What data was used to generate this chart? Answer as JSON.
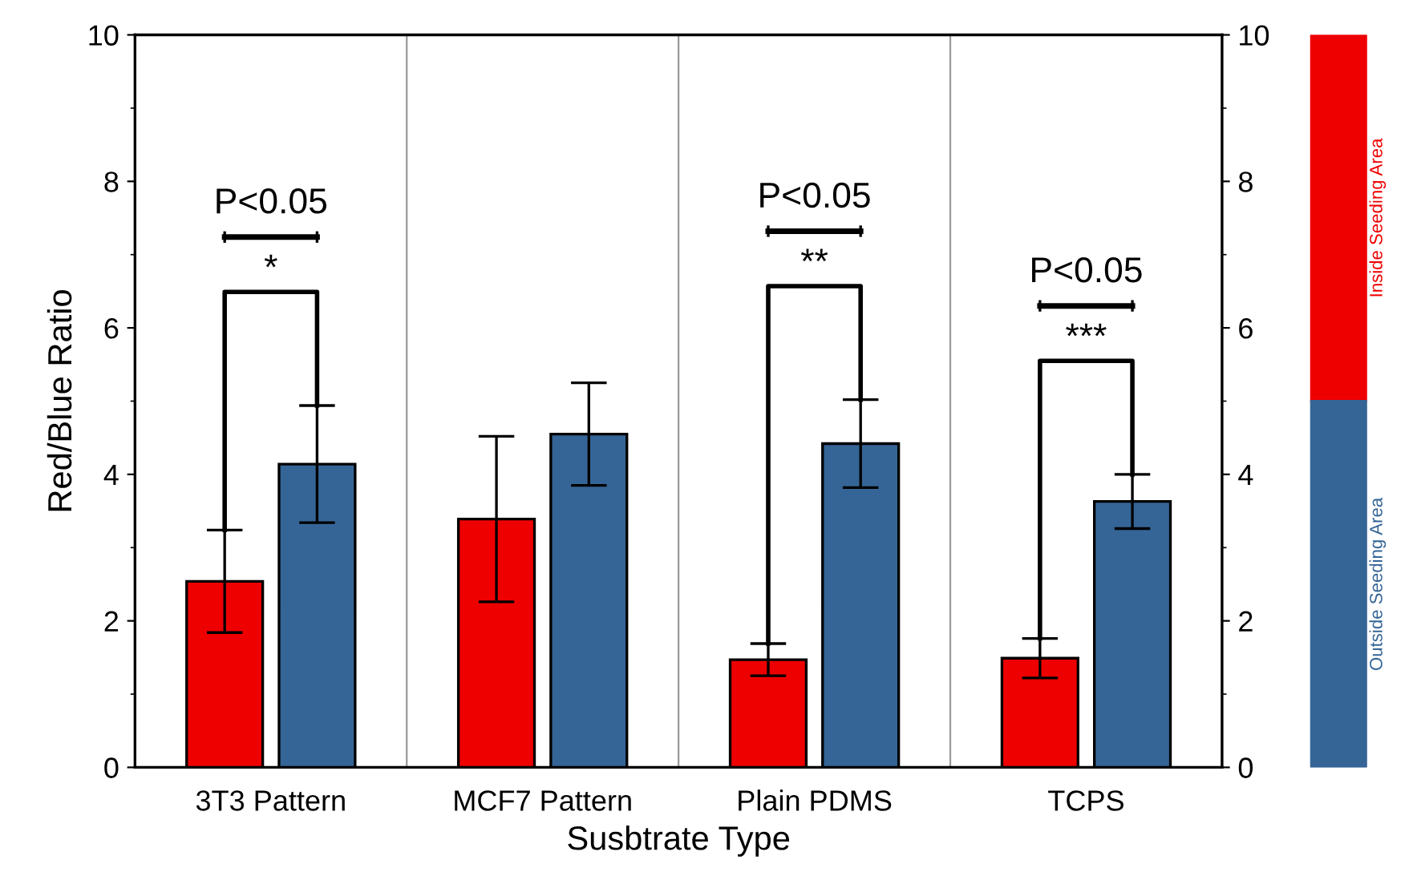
{
  "chart_data": {
    "type": "bar",
    "xlabel": "Susbtrate Type",
    "ylabel": "Red/Blue Ratio",
    "categories": [
      "3T3 Pattern",
      "MCF7 Pattern",
      "Plain PDMS",
      "TCPS"
    ],
    "series": [
      {
        "name": "Inside Seeding Area",
        "color": "#ee0000",
        "values": [
          2.54,
          3.39,
          1.47,
          1.49
        ],
        "errors": [
          0.7,
          1.13,
          0.22,
          0.27
        ]
      },
      {
        "name": "Outside Seeding Area",
        "color": "#356596",
        "values": [
          4.14,
          4.55,
          4.42,
          3.63
        ],
        "errors": [
          0.8,
          0.7,
          0.6,
          0.37
        ]
      }
    ],
    "ylim": [
      0,
      10
    ],
    "yticks": [
      0,
      2,
      4,
      6,
      8,
      10
    ],
    "y2lim": [
      0,
      10
    ],
    "y2ticks": [
      0,
      2,
      4,
      6,
      8,
      10
    ],
    "grid": "x",
    "legend": "right",
    "annotations": [
      "P<0.05",
      "*",
      "P<0.05",
      "**",
      "P<0.05",
      "***"
    ]
  }
}
